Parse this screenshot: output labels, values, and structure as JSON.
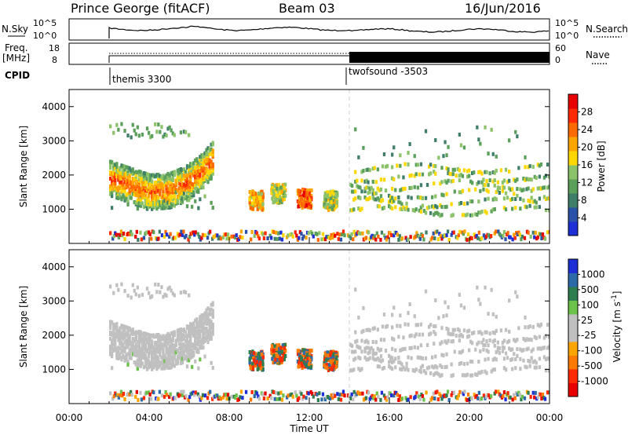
{
  "header": {
    "station": "Prince George (fitACF)",
    "beam": "Beam 03",
    "date": "16/Jun/2016"
  },
  "top_panels": {
    "nsky_label": "N.Sky",
    "nsky_ticks": [
      "10^5",
      "10^0"
    ],
    "nsearch_ticks": [
      "10^5",
      "10^0"
    ],
    "nsearch_label": "N.Search",
    "freq_label_1": "Freq.",
    "freq_label_2": "[MHz]",
    "freq_ticks": [
      "18",
      "8"
    ],
    "nave_ticks": [
      "60",
      "0"
    ],
    "nave_label": "Nave",
    "cpid_label": "CPID",
    "cpid_segments": [
      {
        "name": "themis 3300",
        "start_hour": 2.0
      },
      {
        "name": "twofsound -3503",
        "start_hour": 14.0
      }
    ]
  },
  "chart_data": [
    {
      "type": "heatmap",
      "title": "",
      "ylabel": "Slant Range [km]",
      "xlabel": "",
      "xlim": [
        0,
        24
      ],
      "ylim": [
        0,
        4500
      ],
      "yticks": [
        "1000",
        "2000",
        "3000",
        "4000"
      ],
      "colorbar": {
        "label": "Power [dB]",
        "ticks": [
          "4",
          "8",
          "12",
          "16",
          "20",
          "24",
          "28"
        ],
        "range": [
          0,
          30
        ]
      },
      "features": [
        {
          "desc": "band",
          "x": [
            2.0,
            3.0,
            4.0,
            5.0,
            5.8,
            6.5,
            7.2
          ],
          "y": [
            1900,
            1700,
            1500,
            1550,
            1750,
            2050,
            2500
          ],
          "power": 24
        },
        {
          "desc": "patch",
          "hour": 9.3,
          "range_km": 1250,
          "power": 24
        },
        {
          "desc": "patch",
          "hour": 10.4,
          "range_km": 1450,
          "power": 20
        },
        {
          "desc": "patch",
          "hour": 11.7,
          "range_km": 1300,
          "power": 28
        },
        {
          "desc": "patch",
          "hour": 13.0,
          "range_km": 1250,
          "power": 20
        }
      ]
    },
    {
      "type": "heatmap",
      "title": "",
      "ylabel": "Slant Range [km]",
      "xlabel": "Time UT",
      "xlim": [
        0,
        24
      ],
      "ylim": [
        0,
        4500
      ],
      "xticks": [
        "00:00",
        "04:00",
        "08:00",
        "12:00",
        "16:00",
        "20:00",
        "00:00"
      ],
      "yticks": [
        "1000",
        "2000",
        "3000",
        "4000"
      ],
      "colorbar": {
        "label": "Velocity [m s",
        "label_sup": "-1",
        "label_end": "]",
        "ticks": [
          "1000",
          "500",
          "100",
          "25",
          "-25",
          "-100",
          "-500",
          "-1000"
        ]
      }
    }
  ],
  "colors": {
    "power_scale": [
      "#1f2fd6",
      "#2a52a8",
      "#3f7f6a",
      "#5a9f5a",
      "#8cc26a",
      "#ffd700",
      "#ffa500",
      "#ff6a00",
      "#ff2a00",
      "#e60000"
    ],
    "velocity_scale": [
      "#1f2fd6",
      "#2d6aa8",
      "#2e7d4f",
      "#6cc24a",
      "#c0c0c0",
      "#c0c0c0",
      "#ffa500",
      "#ff7a00",
      "#ff2a00",
      "#e60000"
    ],
    "ground_scatter": "#bdbdbd"
  }
}
